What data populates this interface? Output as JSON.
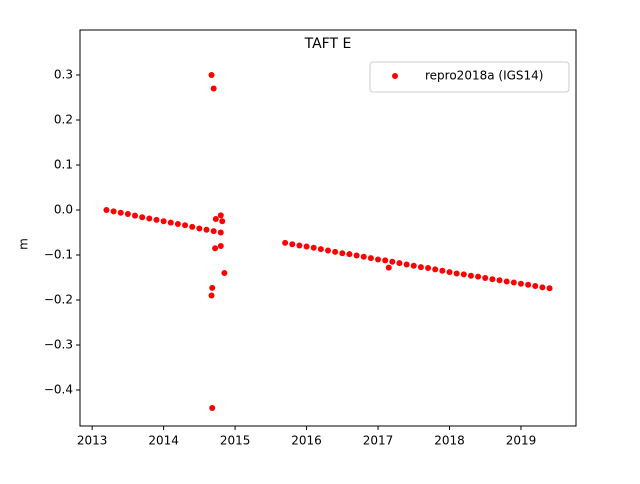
{
  "chart_data": {
    "type": "scatter",
    "title": "TAFT E",
    "y_label": "m",
    "xlim": [
      2012.83,
      2019.77
    ],
    "xticks": [
      2013,
      2014,
      2015,
      2016,
      2017,
      2018,
      2019
    ],
    "ylim": [
      -0.48,
      0.4
    ],
    "yticks": [
      {
        "value": -0.4,
        "label": "−0.4"
      },
      {
        "value": -0.3,
        "label": "−0.3"
      },
      {
        "value": -0.2,
        "label": "−0.2"
      },
      {
        "value": -0.1,
        "label": "−0.1"
      },
      {
        "value": 0,
        "label": "0.0"
      },
      0.1,
      0.2,
      0.3
    ],
    "legend": "upper right",
    "series": [
      {
        "name": "repro2018a (IGS14)",
        "color": "#ff0000",
        "x": [
          2013.2,
          2013.3,
          2013.4,
          2013.5,
          2013.6,
          2013.7,
          2013.8,
          2013.9,
          2014.0,
          2014.1,
          2014.2,
          2014.3,
          2014.4,
          2014.5,
          2014.6,
          2014.7,
          2014.8,
          2015.7,
          2015.8,
          2015.9,
          2016.0,
          2016.1,
          2016.2,
          2016.3,
          2016.4,
          2016.5,
          2016.6,
          2016.7,
          2016.8,
          2016.9,
          2017.0,
          2017.1,
          2017.2,
          2017.3,
          2017.4,
          2017.5,
          2017.6,
          2017.7,
          2017.8,
          2017.9,
          2018.0,
          2018.1,
          2018.2,
          2018.3,
          2018.4,
          2018.5,
          2018.6,
          2018.7,
          2018.8,
          2018.9,
          2019.0,
          2019.1,
          2019.2,
          2019.3,
          2019.4,
          2014.67,
          2014.7,
          2014.68,
          2014.67,
          2014.68,
          2014.85,
          2014.8,
          2014.72,
          2014.73,
          2014.8,
          2014.82,
          2017.15
        ],
        "y": [
          0.0,
          -0.003,
          -0.006,
          -0.009,
          -0.0125,
          -0.016,
          -0.019,
          -0.022,
          -0.025,
          -0.028,
          -0.031,
          -0.034,
          -0.0375,
          -0.041,
          -0.044,
          -0.047,
          -0.05,
          -0.073,
          -0.076,
          -0.079,
          -0.081,
          -0.084,
          -0.087,
          -0.09,
          -0.093,
          -0.096,
          -0.098,
          -0.101,
          -0.104,
          -0.107,
          -0.11,
          -0.112,
          -0.115,
          -0.118,
          -0.121,
          -0.124,
          -0.127,
          -0.129,
          -0.132,
          -0.135,
          -0.138,
          -0.141,
          -0.143,
          -0.146,
          -0.148,
          -0.151,
          -0.154,
          -0.156,
          -0.159,
          -0.161,
          -0.164,
          -0.166,
          -0.169,
          -0.172,
          -0.174,
          0.3,
          0.27,
          -0.44,
          -0.19,
          -0.173,
          -0.14,
          -0.08,
          -0.085,
          -0.02,
          -0.012,
          -0.025,
          -0.128
        ]
      }
    ]
  }
}
